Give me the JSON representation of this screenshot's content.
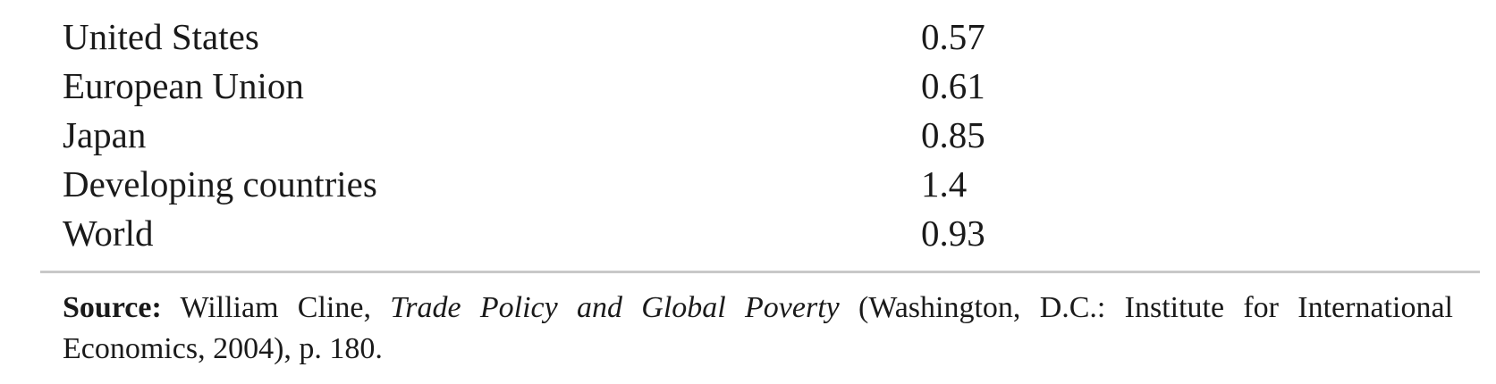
{
  "table": {
    "rows": [
      {
        "label": "United States",
        "value": "0.57"
      },
      {
        "label": "European Union",
        "value": "0.61"
      },
      {
        "label": "Japan",
        "value": "0.85"
      },
      {
        "label": "Developing countries",
        "value": "1.4"
      },
      {
        "label": "World",
        "value": "0.93"
      }
    ]
  },
  "source": {
    "label": "Source:",
    "author": " William Cline, ",
    "title": "Trade Policy and Global Poverty",
    "rest": " (Washington, D.C.: Institute for International Economics, 2004), p. 180."
  },
  "colors": {
    "text": "#1a1a1a",
    "rule": "#c8c8c8",
    "background": "#ffffff"
  }
}
